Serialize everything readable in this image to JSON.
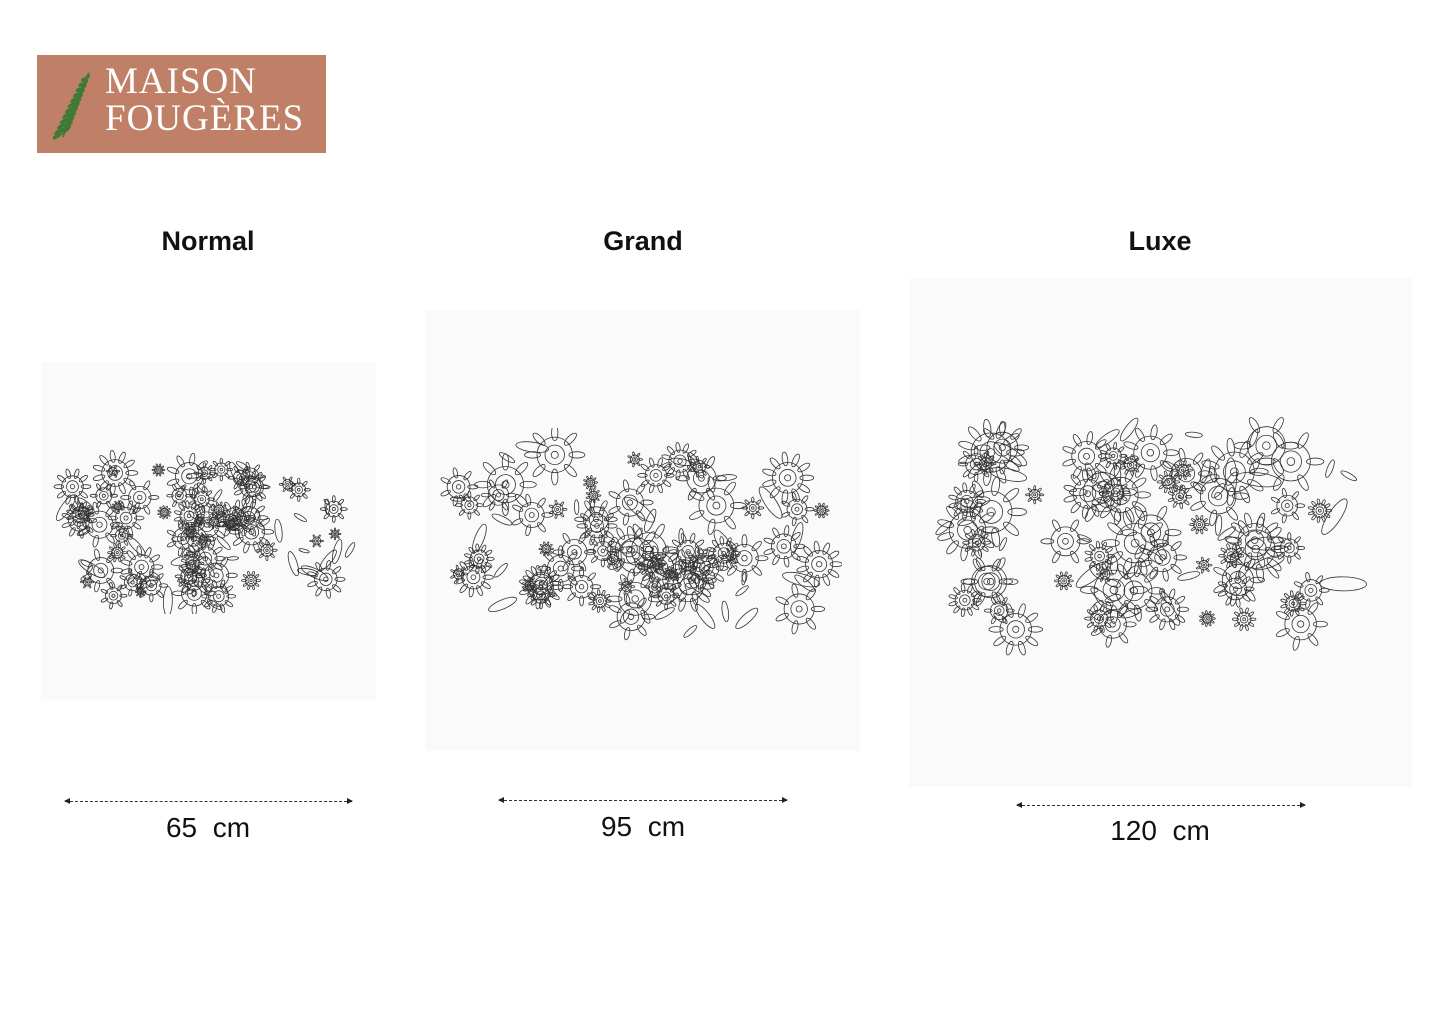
{
  "brand": {
    "line1": "MAISON",
    "line2": "FOUGÈRES",
    "background": "#c08068",
    "fern_color": "#3f7a35"
  },
  "sizes": [
    {
      "name": "Normal",
      "width_value": "65",
      "unit": "cm"
    },
    {
      "name": "Grand",
      "width_value": "95",
      "unit": "cm"
    },
    {
      "name": "Luxe",
      "width_value": "120",
      "unit": "cm"
    }
  ]
}
